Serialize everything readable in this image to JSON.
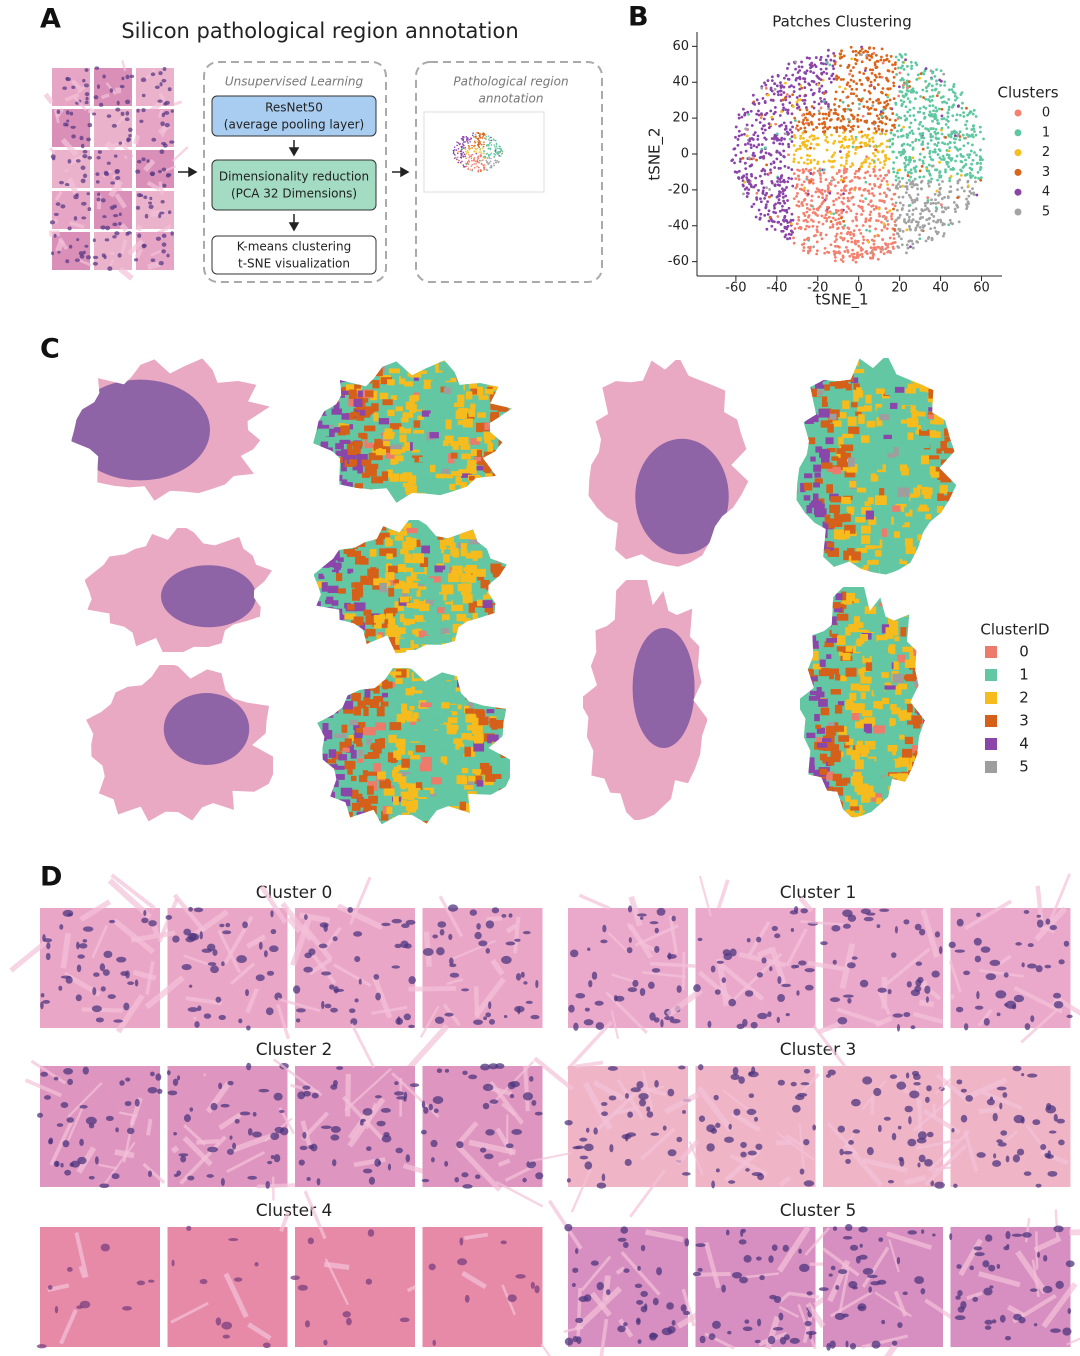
{
  "panel_a": {
    "letter": "A",
    "title": "Silicon pathological region annotation",
    "workflow": {
      "heading": "Unsupervised Learning",
      "steps": [
        [
          "ResNet50",
          "(average pooling layer)"
        ],
        [
          "Dimensionality reduction",
          "(PCA 32 Dimensions)"
        ],
        [
          "K-means clustering",
          "t-SNE visualization"
        ]
      ]
    },
    "output_heading": [
      "Pathological region",
      "annotation"
    ]
  },
  "panel_b": {
    "letter": "B",
    "type": "scatter",
    "title": "Patches Clustering",
    "x_label": "tSNE_1",
    "y_label": "tSNE_2",
    "xlim": [
      -79,
      70
    ],
    "ylim": [
      -68,
      68
    ],
    "xticks": [
      -60,
      -40,
      -20,
      0,
      20,
      40,
      60
    ],
    "yticks": [
      -60,
      -40,
      -20,
      0,
      20,
      40,
      60
    ],
    "legend_title": "Clusters",
    "clusters": [
      {
        "name": "0",
        "color": "#f4806f"
      },
      {
        "name": "1",
        "color": "#5fc8a0"
      },
      {
        "name": "2",
        "color": "#f5bd1f"
      },
      {
        "name": "3",
        "color": "#d9641a"
      },
      {
        "name": "4",
        "color": "#8a44a8"
      },
      {
        "name": "5",
        "color": "#a3a3a3"
      }
    ]
  },
  "panel_c": {
    "letter": "C",
    "legend_title": "ClusterID",
    "clusters": [
      {
        "name": "0",
        "color": "#ec7b6c"
      },
      {
        "name": "1",
        "color": "#62c7a2"
      },
      {
        "name": "2",
        "color": "#f6bb1c"
      },
      {
        "name": "3",
        "color": "#d5601a"
      },
      {
        "name": "4",
        "color": "#8b46aa"
      },
      {
        "name": "5",
        "color": "#9e9e9e"
      }
    ]
  },
  "panel_d": {
    "letter": "D",
    "groups": [
      {
        "title": "Cluster 0"
      },
      {
        "title": "Cluster 1"
      },
      {
        "title": "Cluster 2"
      },
      {
        "title": "Cluster 3"
      },
      {
        "title": "Cluster 4"
      },
      {
        "title": "Cluster 5"
      }
    ]
  }
}
